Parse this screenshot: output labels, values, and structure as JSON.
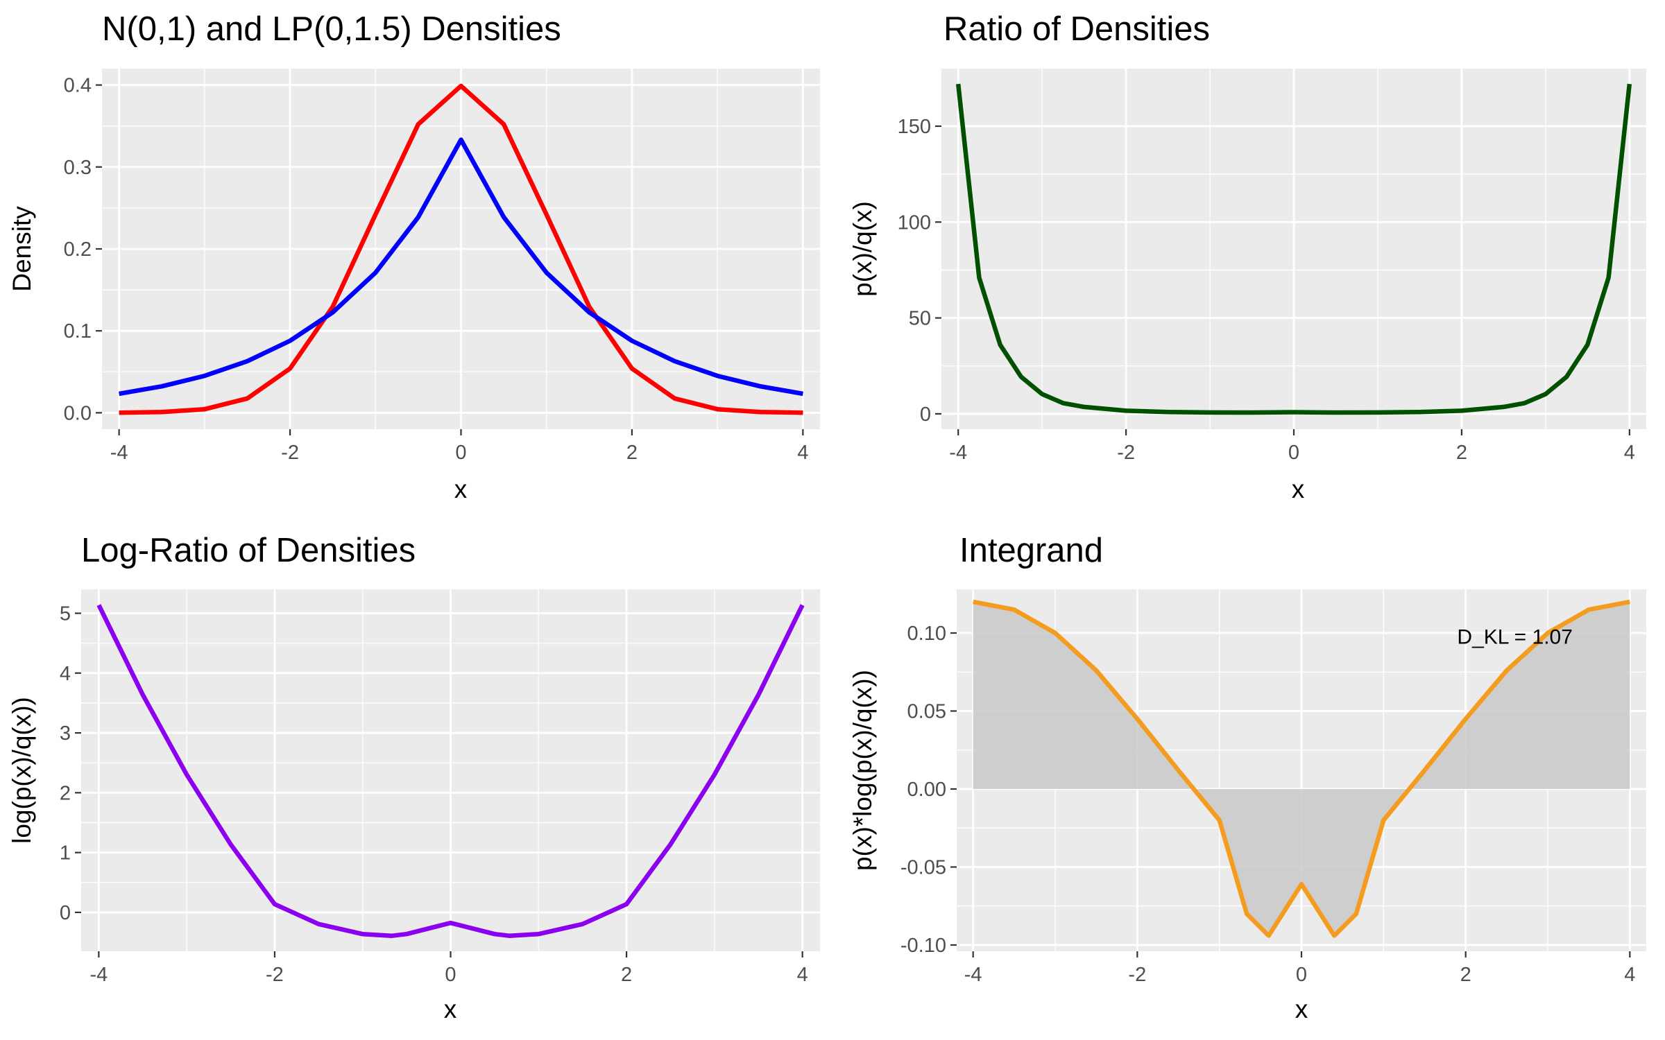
{
  "chart_data": [
    {
      "type": "line",
      "title": "N(0,1) and LP(0,1.5) Densities",
      "xlabel": "x",
      "ylabel": "Density",
      "xlim": [
        -4.2,
        4.2
      ],
      "ylim": [
        -0.02,
        0.42
      ],
      "xticks": [
        -4,
        -2,
        0,
        2,
        4
      ],
      "xtick_labels": [
        "-4",
        "-2",
        "0",
        "2",
        "4"
      ],
      "yticks": [
        0.0,
        0.1,
        0.2,
        0.3,
        0.4
      ],
      "ytick_labels": [
        "0.0",
        "0.1",
        "0.2",
        "0.3",
        "0.4"
      ],
      "grid": true,
      "series": [
        {
          "color": "#ff0000",
          "x": [
            -4,
            -3.5,
            -3,
            -2.5,
            -2,
            -1.5,
            -1,
            -0.5,
            0,
            0.5,
            1,
            1.5,
            2,
            2.5,
            3,
            3.5,
            4
          ],
          "values": [
            0.0001,
            0.0009,
            0.0044,
            0.0175,
            0.054,
            0.1295,
            0.242,
            0.3521,
            0.3989,
            0.3521,
            0.242,
            0.1295,
            0.054,
            0.0175,
            0.0044,
            0.0009,
            0.0001
          ]
        },
        {
          "color": "#0000ff",
          "x": [
            -4,
            -3.5,
            -3,
            -2.5,
            -2,
            -1.5,
            -1,
            -0.5,
            0,
            0.5,
            1,
            1.5,
            2,
            2.5,
            3,
            3.5,
            4
          ],
          "values": [
            0.0232,
            0.0323,
            0.0451,
            0.063,
            0.0879,
            0.1226,
            0.1711,
            0.2388,
            0.3333,
            0.2388,
            0.1711,
            0.1226,
            0.0879,
            0.063,
            0.0451,
            0.0323,
            0.0232
          ]
        }
      ]
    },
    {
      "type": "line",
      "title": "Ratio of Densities",
      "xlabel": "x",
      "ylabel": "p(x)/q(x)",
      "xlim": [
        -4.2,
        4.2
      ],
      "ylim": [
        -8,
        180
      ],
      "xticks": [
        -4,
        -2,
        0,
        2,
        4
      ],
      "xtick_labels": [
        "-4",
        "-2",
        "0",
        "2",
        "4"
      ],
      "yticks": [
        0,
        50,
        100,
        150
      ],
      "ytick_labels": [
        "0",
        "50",
        "100",
        "150"
      ],
      "grid": true,
      "series": [
        {
          "color": "#005000",
          "x": [
            -4,
            -3.75,
            -3.5,
            -3.25,
            -3,
            -2.75,
            -2.5,
            -2,
            -1.5,
            -1,
            -0.5,
            0,
            0.5,
            1,
            1.5,
            2,
            2.5,
            2.75,
            3,
            3.25,
            3.5,
            3.75,
            4
          ],
          "values": [
            172,
            71,
            36,
            19.3,
            10.3,
            5.6,
            3.6,
            1.63,
            0.95,
            0.71,
            0.68,
            0.84,
            0.68,
            0.71,
            0.95,
            1.63,
            3.6,
            5.6,
            10.3,
            19.3,
            36,
            71,
            172
          ]
        }
      ]
    },
    {
      "type": "line",
      "title": "Log-Ratio of Densities",
      "xlabel": "x",
      "ylabel": "log(p(x)/q(x))",
      "xlim": [
        -4.2,
        4.2
      ],
      "ylim": [
        -0.65,
        5.4
      ],
      "xticks": [
        -4,
        -2,
        0,
        2,
        4
      ],
      "xtick_labels": [
        "-4",
        "-2",
        "0",
        "2",
        "4"
      ],
      "yticks": [
        0,
        1,
        2,
        3,
        4,
        5
      ],
      "ytick_labels": [
        "0",
        "1",
        "2",
        "3",
        "4",
        "5"
      ],
      "grid": true,
      "series": [
        {
          "color": "#8b00ee",
          "x": [
            -4,
            -3.5,
            -3,
            -2.5,
            -2,
            -1.5,
            -1,
            -0.667,
            -0.5,
            0,
            0.5,
            0.667,
            1,
            1.5,
            2,
            2.5,
            3,
            3.5,
            4
          ],
          "values": [
            5.137,
            3.637,
            2.303,
            1.137,
            0.137,
            -0.196,
            -0.363,
            -0.391,
            -0.363,
            -0.1765,
            -0.363,
            -0.391,
            -0.363,
            -0.196,
            0.137,
            1.137,
            2.303,
            3.637,
            5.137
          ]
        }
      ]
    },
    {
      "type": "area",
      "title": "Integrand",
      "xlabel": "x",
      "ylabel": "p(x)*log(p(x)/q(x))",
      "xlim": [
        -4.2,
        4.2
      ],
      "ylim": [
        -0.104,
        0.128
      ],
      "xticks": [
        -4,
        -2,
        0,
        2,
        4
      ],
      "xtick_labels": [
        "-4",
        "-2",
        "0",
        "2",
        "4"
      ],
      "yticks": [
        -0.1,
        -0.05,
        0.0,
        0.05,
        0.1
      ],
      "ytick_labels": [
        "-0.10",
        "-0.05",
        "0.00",
        "0.05",
        "0.10"
      ],
      "grid": true,
      "annotation": "D_KL = 1.07",
      "annotation_pos": [
        2.6,
        0.098
      ],
      "series": [
        {
          "color": "#f39c1f",
          "fill": "#c9c9c9",
          "x": [
            -4,
            -3.5,
            -3,
            -2.5,
            -2,
            -1.5,
            -1,
            -0.667,
            -0.4,
            0,
            0.4,
            0.667,
            1,
            1.5,
            2,
            2.5,
            3,
            3.5,
            4
          ],
          "values": [
            0.12,
            0.115,
            0.1,
            0.076,
            0.045,
            0.012,
            -0.02,
            -0.08,
            -0.094,
            -0.061,
            -0.094,
            -0.08,
            -0.02,
            0.012,
            0.045,
            0.076,
            0.1,
            0.115,
            0.12
          ]
        }
      ]
    }
  ]
}
